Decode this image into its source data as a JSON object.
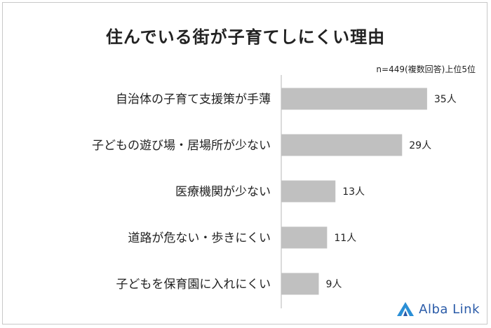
{
  "chart_data": {
    "type": "bar",
    "orientation": "horizontal",
    "title": "住んでいる街が子育てしにくい理由",
    "note": "n=449(複数回答)上位5位",
    "unit": "人",
    "categories": [
      "自治体の子育て支援策が手薄",
      "子どもの遊び場・居場所が少ない",
      "医療機関が少ない",
      "道路が危ない・歩きにくい",
      "子どもを保育園に入れにくい"
    ],
    "values": [
      35,
      29,
      13,
      11,
      9
    ],
    "value_labels": [
      "35人",
      "29人",
      "13人",
      "11人",
      "9人"
    ],
    "xlim": [
      0,
      40
    ],
    "bar_color": "#c0c0c0",
    "axis_color": "#cfcfcf",
    "grid": false,
    "legend": "none"
  },
  "brand": {
    "name": "Alba Link",
    "color": "#2a5ba8"
  }
}
